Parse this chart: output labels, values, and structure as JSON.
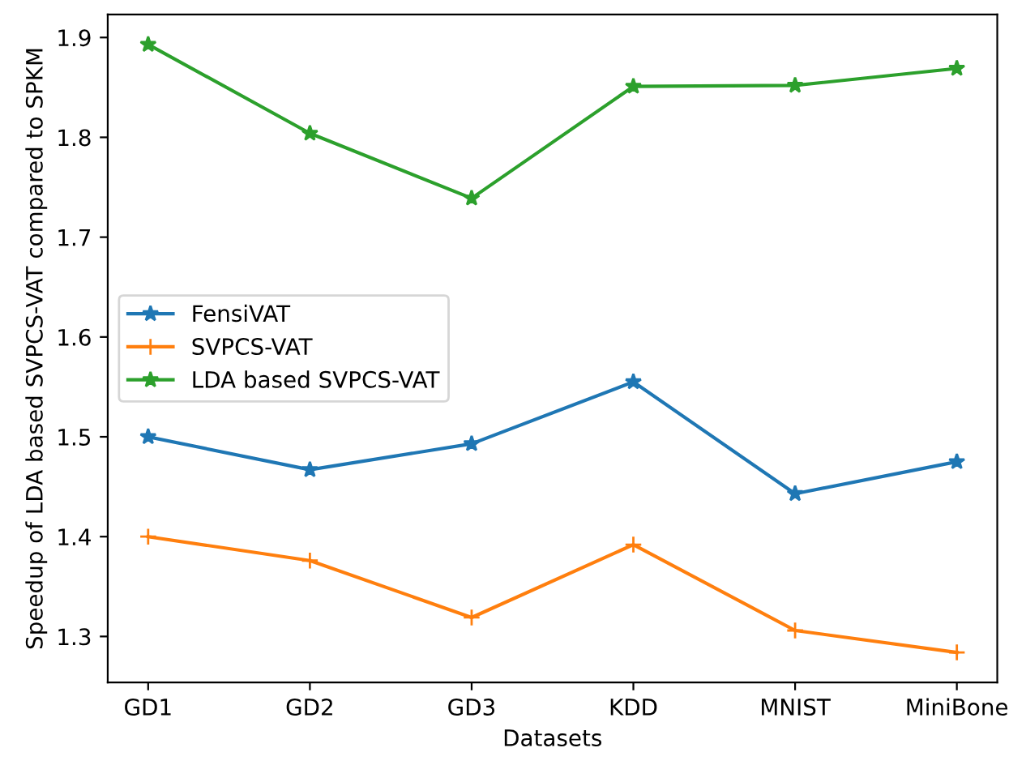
{
  "chart_data": {
    "type": "line",
    "xlabel": "Datasets",
    "ylabel": "Speedup of LDA based SVPCS-VAT compared to SPKM",
    "categories": [
      "GD1",
      "GD2",
      "GD3",
      "KDD",
      "MNIST",
      "MiniBone"
    ],
    "series": [
      {
        "name": "FensiVAT",
        "color": "#1f77b4",
        "marker": "star",
        "values": [
          1.5,
          1.467,
          1.493,
          1.555,
          1.443,
          1.475
        ]
      },
      {
        "name": "SVPCS-VAT",
        "color": "#ff7f0e",
        "marker": "plus",
        "values": [
          1.4,
          1.376,
          1.319,
          1.392,
          1.306,
          1.284
        ]
      },
      {
        "name": "LDA based SVPCS-VAT",
        "color": "#2ca02c",
        "marker": "star",
        "values": [
          1.893,
          1.804,
          1.739,
          1.851,
          1.852,
          1.869
        ]
      }
    ],
    "ylim": [
      1.254,
      1.923
    ],
    "yticks": [
      1.3,
      1.4,
      1.5,
      1.6,
      1.7,
      1.8,
      1.9
    ],
    "legend": "center left",
    "grid": false,
    "line_style": "solid"
  }
}
